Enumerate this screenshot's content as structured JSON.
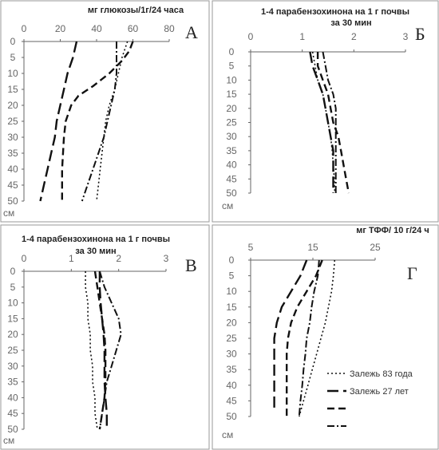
{
  "chart_data": [
    {
      "panel": "А",
      "type": "line",
      "title": "мг глюкозы/1г/24 часа",
      "ylabel": "см",
      "x_ticks": [
        "0",
        "20",
        "40",
        "60",
        "80"
      ],
      "xlim": [
        0,
        80
      ],
      "y_ticks": [
        "0",
        "5",
        "10",
        "15",
        "20",
        "25",
        "30",
        "35",
        "40",
        "45",
        "50"
      ],
      "ylim": [
        0,
        50
      ],
      "series": [
        {
          "style": "dotted",
          "values": [
            [
              57,
              0
            ],
            [
              54,
              5
            ],
            [
              52,
              10
            ],
            [
              50,
              15
            ],
            [
              47,
              20
            ],
            [
              45,
              25
            ],
            [
              44,
              30
            ],
            [
              43,
              35
            ],
            [
              42,
              40
            ],
            [
              41,
              45
            ],
            [
              40,
              50
            ]
          ]
        },
        {
          "style": "long-dash",
          "values": [
            [
              29,
              0
            ],
            [
              27,
              5
            ],
            [
              24,
              10
            ],
            [
              22,
              15
            ],
            [
              20,
              20
            ],
            [
              18,
              25
            ],
            [
              17,
              30
            ],
            [
              15,
              35
            ],
            [
              13,
              40
            ],
            [
              11,
              45
            ],
            [
              9,
              50
            ]
          ]
        },
        {
          "style": "dash",
          "values": [
            [
              60,
              0
            ],
            [
              58,
              3
            ],
            [
              54,
              6
            ],
            [
              47,
              10
            ],
            [
              38,
              14
            ],
            [
              30,
              17
            ],
            [
              26,
              20
            ],
            [
              23,
              25
            ],
            [
              22,
              30
            ],
            [
              21,
              40
            ],
            [
              21,
              50
            ]
          ]
        },
        {
          "style": "dash-dot",
          "values": [
            [
              51,
              0
            ],
            [
              51,
              5
            ],
            [
              51,
              10
            ],
            [
              50,
              15
            ],
            [
              48,
              20
            ],
            [
              46,
              25
            ],
            [
              44,
              30
            ],
            [
              41,
              35
            ],
            [
              38,
              40
            ],
            [
              35,
              45
            ],
            [
              32,
              50
            ]
          ]
        }
      ]
    },
    {
      "panel": "Б",
      "type": "line",
      "title": [
        "1-4 парабензохинона на 1 г почвы",
        "за 30 мин"
      ],
      "ylabel": "см",
      "x_ticks": [
        "0",
        "1",
        "2",
        "3"
      ],
      "xlim": [
        0,
        3
      ],
      "y_ticks": [
        "0",
        "5",
        "10",
        "15",
        "20",
        "25",
        "30",
        "35",
        "40",
        "45",
        "50"
      ],
      "ylim": [
        0,
        50
      ],
      "series": [
        {
          "style": "dotted",
          "values": [
            [
              1.2,
              0
            ],
            [
              1.25,
              5
            ],
            [
              1.3,
              10
            ],
            [
              1.4,
              15
            ],
            [
              1.45,
              20
            ],
            [
              1.5,
              25
            ],
            [
              1.55,
              30
            ],
            [
              1.58,
              35
            ],
            [
              1.6,
              40
            ],
            [
              1.62,
              45
            ],
            [
              1.63,
              50
            ]
          ]
        },
        {
          "style": "long-dash",
          "values": [
            [
              1.15,
              0
            ],
            [
              1.2,
              5
            ],
            [
              1.3,
              10
            ],
            [
              1.4,
              15
            ],
            [
              1.45,
              20
            ],
            [
              1.5,
              25
            ],
            [
              1.55,
              30
            ],
            [
              1.6,
              35
            ],
            [
              1.6,
              40
            ],
            [
              1.6,
              45
            ],
            [
              1.6,
              50
            ]
          ]
        },
        {
          "style": "dash",
          "values": [
            [
              1.3,
              0
            ],
            [
              1.3,
              5
            ],
            [
              1.4,
              10
            ],
            [
              1.5,
              15
            ],
            [
              1.55,
              20
            ],
            [
              1.6,
              25
            ],
            [
              1.7,
              30
            ],
            [
              1.75,
              35
            ],
            [
              1.8,
              40
            ],
            [
              1.85,
              45
            ],
            [
              1.9,
              50
            ]
          ]
        },
        {
          "style": "dash-dot",
          "values": [
            [
              1.4,
              0
            ],
            [
              1.45,
              5
            ],
            [
              1.5,
              10
            ],
            [
              1.6,
              15
            ],
            [
              1.65,
              20
            ],
            [
              1.65,
              25
            ],
            [
              1.65,
              30
            ],
            [
              1.65,
              35
            ],
            [
              1.65,
              40
            ],
            [
              1.65,
              45
            ],
            [
              1.65,
              50
            ]
          ]
        }
      ]
    },
    {
      "panel": "В",
      "type": "line",
      "title": [
        "1-4 парабензохинона на 1 г почвы",
        "за 30 мин"
      ],
      "ylabel": "см",
      "x_ticks": [
        "0",
        "1",
        "2",
        "3"
      ],
      "xlim": [
        0,
        3
      ],
      "y_ticks": [
        "0",
        "5",
        "10",
        "15",
        "20",
        "25",
        "30",
        "35",
        "40",
        "45",
        "50"
      ],
      "ylim": [
        0,
        50
      ],
      "series": [
        {
          "style": "dotted",
          "values": [
            [
              1.3,
              0
            ],
            [
              1.3,
              5
            ],
            [
              1.35,
              10
            ],
            [
              1.35,
              15
            ],
            [
              1.4,
              20
            ],
            [
              1.4,
              25
            ],
            [
              1.45,
              30
            ],
            [
              1.45,
              35
            ],
            [
              1.5,
              40
            ],
            [
              1.5,
              45
            ],
            [
              1.55,
              50
            ]
          ]
        },
        {
          "style": "long-dash",
          "values": [
            [
              1.6,
              0
            ],
            [
              1.6,
              5
            ],
            [
              1.62,
              10
            ],
            [
              1.65,
              15
            ],
            [
              1.68,
              20
            ],
            [
              1.7,
              25
            ],
            [
              1.7,
              30
            ],
            [
              1.7,
              35
            ],
            [
              1.72,
              40
            ],
            [
              1.75,
              45
            ],
            [
              1.75,
              50
            ]
          ]
        },
        {
          "style": "dash",
          "values": [
            [
              1.5,
              0
            ],
            [
              1.55,
              5
            ],
            [
              1.6,
              10
            ],
            [
              1.65,
              15
            ],
            [
              1.7,
              20
            ],
            [
              1.72,
              25
            ],
            [
              1.72,
              30
            ],
            [
              1.72,
              35
            ],
            [
              1.7,
              40
            ],
            [
              1.65,
              45
            ],
            [
              1.6,
              50
            ]
          ]
        },
        {
          "style": "dash-dot",
          "values": [
            [
              1.6,
              0
            ],
            [
              1.7,
              5
            ],
            [
              1.85,
              10
            ],
            [
              2.0,
              15
            ],
            [
              2.05,
              20
            ],
            [
              1.95,
              25
            ],
            [
              1.85,
              30
            ],
            [
              1.75,
              35
            ],
            [
              1.7,
              40
            ],
            [
              1.65,
              45
            ],
            [
              1.6,
              50
            ]
          ]
        }
      ]
    },
    {
      "panel": "Г",
      "type": "line",
      "title": "мг ТФФ/ 10 г/24 ч",
      "ylabel": "см",
      "x_ticks": [
        "5",
        "15",
        "25"
      ],
      "xlim": [
        5,
        25
      ],
      "y_ticks": [
        "0",
        "5",
        "10",
        "15",
        "20",
        "25",
        "30",
        "35",
        "40",
        "45",
        "50"
      ],
      "ylim": [
        0,
        50
      ],
      "series": [
        {
          "style": "dotted",
          "values": [
            [
              18.5,
              0
            ],
            [
              18.3,
              5
            ],
            [
              18.0,
              10
            ],
            [
              17.5,
              15
            ],
            [
              17.0,
              20
            ],
            [
              16.3,
              25
            ],
            [
              15.6,
              30
            ],
            [
              14.9,
              35
            ],
            [
              14.2,
              40
            ],
            [
              13.5,
              45
            ],
            [
              12.8,
              50
            ]
          ]
        },
        {
          "style": "long-dash",
          "values": [
            [
              14.0,
              0
            ],
            [
              13.0,
              5
            ],
            [
              11.5,
              10
            ],
            [
              10.0,
              15
            ],
            [
              9.2,
              20
            ],
            [
              8.8,
              25
            ],
            [
              8.8,
              30
            ],
            [
              8.8,
              35
            ],
            [
              8.8,
              40
            ],
            [
              8.8,
              45
            ],
            [
              8.8,
              48
            ]
          ]
        },
        {
          "style": "dash",
          "values": [
            [
              16.5,
              0
            ],
            [
              15.5,
              5
            ],
            [
              14.0,
              10
            ],
            [
              12.5,
              15
            ],
            [
              11.5,
              20
            ],
            [
              11.0,
              25
            ],
            [
              10.8,
              30
            ],
            [
              10.8,
              35
            ],
            [
              10.8,
              40
            ],
            [
              10.8,
              45
            ],
            [
              10.8,
              50
            ]
          ]
        },
        {
          "style": "dash-dot",
          "values": [
            [
              16.0,
              0
            ],
            [
              15.8,
              5
            ],
            [
              15.2,
              10
            ],
            [
              14.8,
              15
            ],
            [
              14.5,
              20
            ],
            [
              14.0,
              25
            ],
            [
              13.8,
              30
            ],
            [
              13.5,
              35
            ],
            [
              13.3,
              40
            ],
            [
              13.0,
              45
            ],
            [
              12.8,
              50
            ]
          ]
        }
      ],
      "legend": [
        "Залежь 83 года",
        "Залежь 27 лет",
        "",
        ""
      ]
    }
  ]
}
